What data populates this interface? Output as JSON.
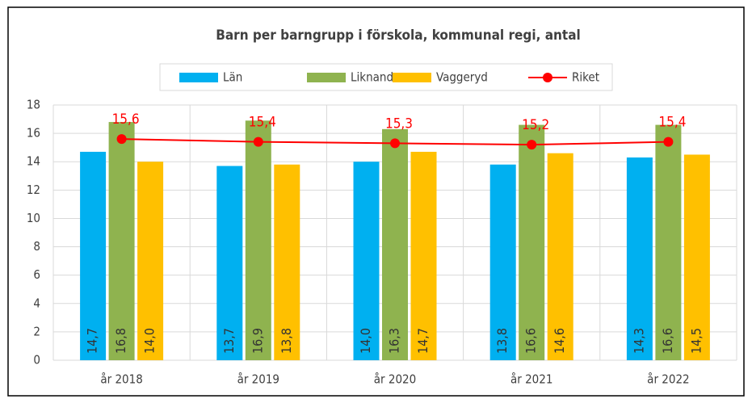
{
  "chart_data": {
    "type": "bar",
    "title": "Barn per barngrupp i förskola, kommunal regi, antal",
    "categories": [
      "år 2018",
      "år 2019",
      "år 2020",
      "år 2021",
      "år 2022"
    ],
    "series": [
      {
        "name": "Län",
        "color": "#00b0f0",
        "values": [
          14.7,
          13.7,
          14.0,
          13.8,
          14.3
        ],
        "value_labels": [
          "14,7",
          "13,7",
          "14,0",
          "13,8",
          "14,3"
        ]
      },
      {
        "name": "Liknande",
        "color": "#8fb34f",
        "values": [
          16.8,
          16.9,
          16.3,
          16.6,
          16.6
        ],
        "value_labels": [
          "16,8",
          "16,9",
          "16,3",
          "16,6",
          "16,6"
        ]
      },
      {
        "name": "Vaggeryd",
        "color": "#ffc000",
        "values": [
          14.0,
          13.8,
          14.7,
          14.6,
          14.5
        ],
        "value_labels": [
          "14,0",
          "13,8",
          "14,7",
          "14,6",
          "14,5"
        ]
      },
      {
        "name": "Riket",
        "type": "line",
        "color": "#ff0000",
        "values": [
          15.6,
          15.4,
          15.3,
          15.2,
          15.4
        ],
        "value_labels": [
          "15,6",
          "15,4",
          "15,3",
          "15,2",
          "15,4"
        ]
      }
    ],
    "ylim": [
      0,
      18
    ],
    "yticks": [
      0,
      2,
      4,
      6,
      8,
      10,
      12,
      14,
      16,
      18
    ],
    "grid": true,
    "legend": "top"
  }
}
